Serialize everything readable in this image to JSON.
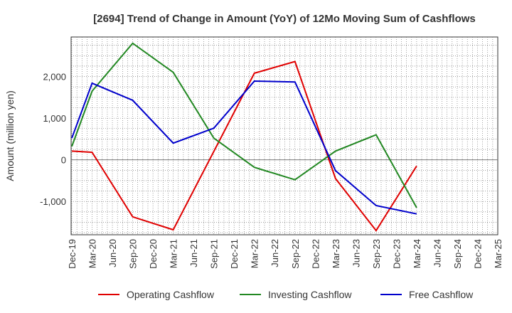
{
  "chart_data": {
    "type": "line",
    "title": "[2694]  Trend of Change in Amount (YoY) of 12Mo Moving Sum of Cashflows",
    "ylabel": "Amount (million yen)",
    "xlabel": "",
    "ylim": [
      -1800,
      2950
    ],
    "yticks": [
      -1000,
      0,
      1000,
      2000
    ],
    "ytick_labels": [
      "-1,000",
      "0",
      "1,000",
      "2,000"
    ],
    "categories": [
      "Dec-19",
      "Mar-20",
      "Jun-20",
      "Sep-20",
      "Dec-20",
      "Mar-21",
      "Jun-21",
      "Sep-21",
      "Dec-21",
      "Mar-22",
      "Jun-22",
      "Sep-22",
      "Dec-22",
      "Mar-23",
      "Jun-23",
      "Sep-23",
      "Dec-23",
      "Mar-24",
      "Jun-24",
      "Sep-24",
      "Dec-24",
      "Mar-25"
    ],
    "grid": true,
    "legend_position": "bottom",
    "series": [
      {
        "name": "Operating Cashflow",
        "color": "#e00000",
        "values": [
          210,
          180,
          null,
          -1370,
          null,
          -1680,
          null,
          null,
          null,
          2080,
          null,
          2360,
          null,
          -450,
          null,
          -1700,
          null,
          -150,
          null,
          null,
          null,
          null
        ]
      },
      {
        "name": "Investing Cashflow",
        "color": "#228822",
        "values": [
          320,
          1650,
          null,
          2800,
          null,
          2100,
          null,
          520,
          null,
          -180,
          null,
          -480,
          null,
          210,
          null,
          600,
          null,
          -1150,
          null,
          null,
          null,
          null
        ]
      },
      {
        "name": "Free Cashflow",
        "color": "#0000cc",
        "values": [
          520,
          1840,
          null,
          1430,
          null,
          400,
          null,
          760,
          null,
          1890,
          null,
          1870,
          null,
          -260,
          null,
          -1100,
          null,
          -1300,
          null,
          null,
          null,
          null
        ]
      }
    ]
  }
}
